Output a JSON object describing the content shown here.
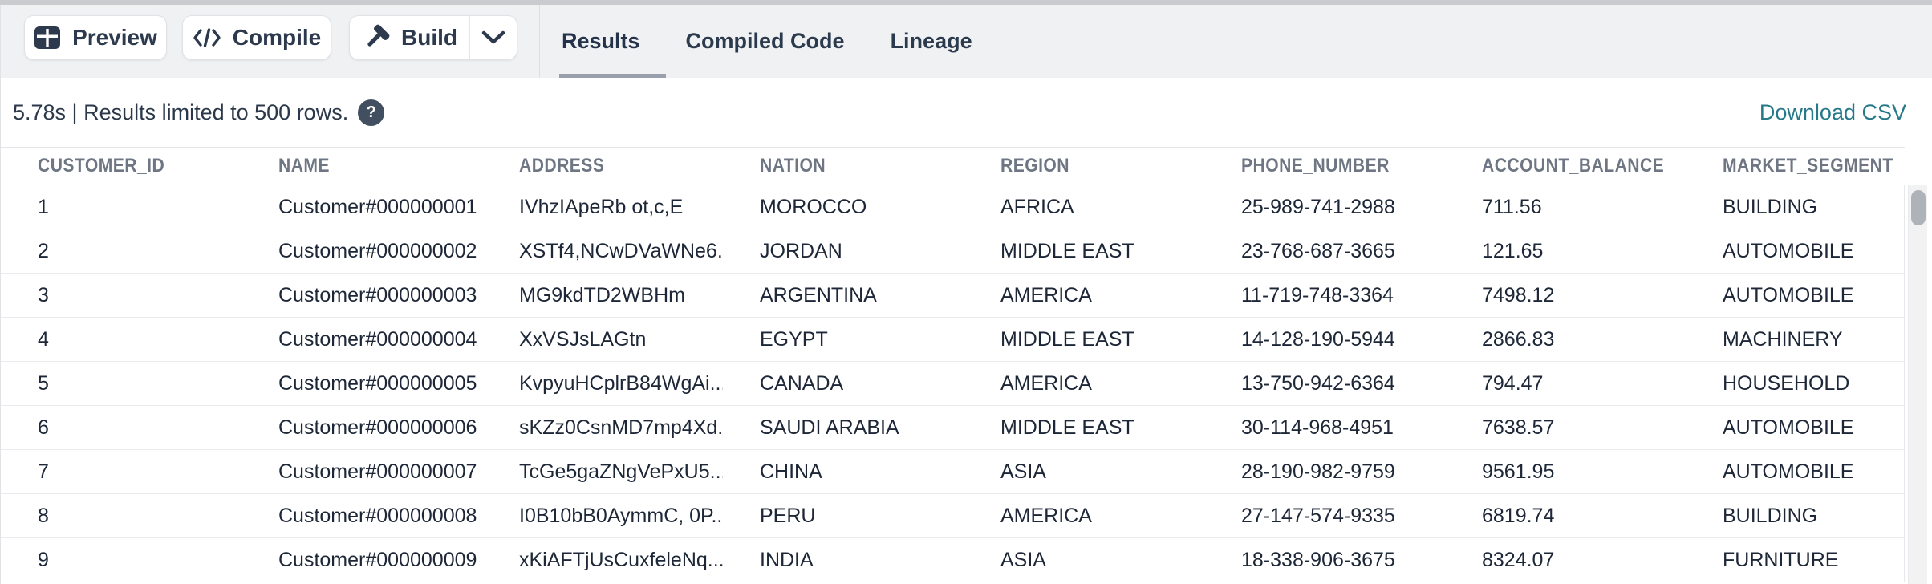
{
  "toolbar": {
    "preview_label": "Preview",
    "compile_label": "Compile",
    "build_label": "Build"
  },
  "tabs": [
    {
      "label": "Results",
      "active": true
    },
    {
      "label": "Compiled Code",
      "active": false
    },
    {
      "label": "Lineage",
      "active": false
    }
  ],
  "results_bar": {
    "status_text": "5.78s | Results limited to 500 rows.",
    "help_glyph": "?",
    "download_label": "Download CSV"
  },
  "table": {
    "columns": [
      "CUSTOMER_ID",
      "NAME",
      "ADDRESS",
      "NATION",
      "REGION",
      "PHONE_NUMBER",
      "ACCOUNT_BALANCE",
      "MARKET_SEGMENT"
    ],
    "rows": [
      [
        "1",
        "Customer#000000001",
        "IVhzIApeRb ot,c,E",
        "MOROCCO",
        "AFRICA",
        "25-989-741-2988",
        "711.56",
        "BUILDING"
      ],
      [
        "2",
        "Customer#000000002",
        "XSTf4,NCwDVaWNe6...",
        "JORDAN",
        "MIDDLE EAST",
        "23-768-687-3665",
        "121.65",
        "AUTOMOBILE"
      ],
      [
        "3",
        "Customer#000000003",
        "MG9kdTD2WBHm",
        "ARGENTINA",
        "AMERICA",
        "11-719-748-3364",
        "7498.12",
        "AUTOMOBILE"
      ],
      [
        "4",
        "Customer#000000004",
        "XxVSJsLAGtn",
        "EGYPT",
        "MIDDLE EAST",
        "14-128-190-5944",
        "2866.83",
        "MACHINERY"
      ],
      [
        "5",
        "Customer#000000005",
        "KvpyuHCplrB84WgAi...",
        "CANADA",
        "AMERICA",
        "13-750-942-6364",
        "794.47",
        "HOUSEHOLD"
      ],
      [
        "6",
        "Customer#000000006",
        "sKZz0CsnMD7mp4Xd...",
        "SAUDI ARABIA",
        "MIDDLE EAST",
        "30-114-968-4951",
        "7638.57",
        "AUTOMOBILE"
      ],
      [
        "7",
        "Customer#000000007",
        "TcGe5gaZNgVePxU5...",
        "CHINA",
        "ASIA",
        "28-190-982-9759",
        "9561.95",
        "AUTOMOBILE"
      ],
      [
        "8",
        "Customer#000000008",
        "I0B10bB0AymmC, 0P...",
        "PERU",
        "AMERICA",
        "27-147-574-9335",
        "6819.74",
        "BUILDING"
      ],
      [
        "9",
        "Customer#000000009",
        "xKiAFTjUsCuxfeleNq...",
        "INDIA",
        "ASIA",
        "18-338-906-3675",
        "8324.07",
        "FURNITURE"
      ]
    ]
  },
  "colors": {
    "accent_link": "#27798a",
    "toolbar_bg": "#f0f1f3",
    "top_strip": "#c9cbcf",
    "button_text": "#2d3a4e",
    "cell_text": "#1d2737",
    "column_header_text": "#6e7684",
    "tab_underline": "#9aa0ab",
    "help_badge_bg": "#424f61"
  }
}
